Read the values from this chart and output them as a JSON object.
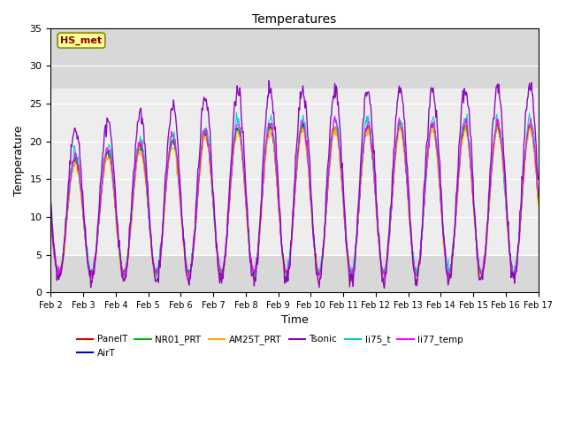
{
  "title": "Temperatures",
  "xlabel": "Time",
  "ylabel": "Temperature",
  "ylim": [
    0,
    35
  ],
  "xlim_days": [
    2,
    17
  ],
  "hs_met_label": "HS_met",
  "series_colors": {
    "PanelT": "#dd0000",
    "AirT": "#0000cc",
    "NR01_PRT": "#00bb00",
    "AM25T_PRT": "#ffaa00",
    "Tsonic": "#8800bb",
    "li75_t": "#00cccc",
    "li77_temp": "#ff00ff"
  },
  "legend_order": [
    "PanelT",
    "AirT",
    "NR01_PRT",
    "AM25T_PRT",
    "Tsonic",
    "li75_t",
    "li77_temp"
  ],
  "background_color": "#ffffff",
  "plot_bg_color": "#d8d8d8",
  "white_band_lo": 5,
  "white_band_hi": 27,
  "hs_met_box_color": "#ffff99",
  "hs_met_text_color": "#880000",
  "hs_met_border_color": "#888800",
  "n_points": 720,
  "days_start": 2,
  "days_end": 17
}
